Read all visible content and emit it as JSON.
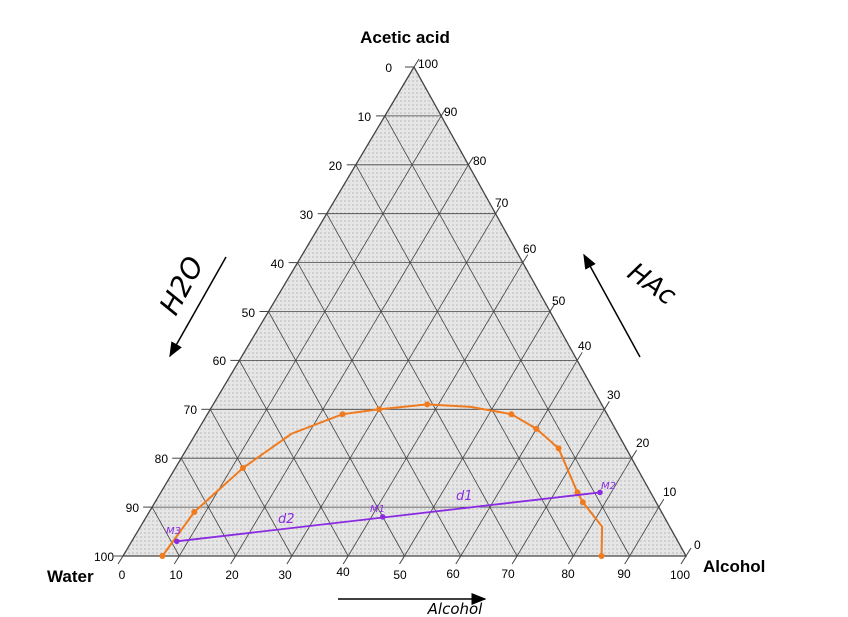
{
  "labels": {
    "top": "Acetic acid",
    "left": "Water",
    "right": "Alcohol"
  },
  "ticks": {
    "left_edge": [
      "0",
      "10",
      "20",
      "30",
      "40",
      "50",
      "60",
      "70",
      "80",
      "90",
      "100"
    ],
    "right_edge": [
      "100",
      "90",
      "80",
      "70",
      "60",
      "50",
      "40",
      "30",
      "20",
      "10",
      "0"
    ],
    "bottom_edge": [
      "0",
      "10",
      "20",
      "30",
      "40",
      "50",
      "60",
      "70",
      "80",
      "90",
      "100"
    ]
  },
  "annotations": {
    "h2o": "H2O",
    "hac": "HAc",
    "alcohol": "Alcohol",
    "m1": "M1",
    "m2": "M2",
    "m3": "M3",
    "d1": "d1",
    "d2": "d2"
  },
  "colors": {
    "grid": "#444444",
    "fill": "#e6e6e6",
    "curve": "#f07a1e",
    "tie_line": "#8a2be2"
  },
  "chart_data": {
    "type": "ternary",
    "vertices": {
      "top": "Acetic acid",
      "left": "Water",
      "right": "Alcohol"
    },
    "components": "acetic acid % / water % / alcohol %",
    "binodal_curve": [
      {
        "acetic_acid": 0,
        "alcohol": 7
      },
      {
        "acetic_acid": 9,
        "alcohol": 8
      },
      {
        "acetic_acid": 18,
        "alcohol": 12
      },
      {
        "acetic_acid": 25,
        "alcohol": 17
      },
      {
        "acetic_acid": 29,
        "alcohol": 24
      },
      {
        "acetic_acid": 30,
        "alcohol": 30
      },
      {
        "acetic_acid": 31,
        "alcohol": 38
      },
      {
        "acetic_acid": 30.5,
        "alcohol": 46
      },
      {
        "acetic_acid": 29,
        "alcohol": 54
      },
      {
        "acetic_acid": 26,
        "alcohol": 60
      },
      {
        "acetic_acid": 22,
        "alcohol": 66
      },
      {
        "acetic_acid": 13,
        "alcohol": 74
      },
      {
        "acetic_acid": 11,
        "alcohol": 76
      },
      {
        "acetic_acid": 6,
        "alcohol": 82
      },
      {
        "acetic_acid": 0,
        "alcohol": 85
      }
    ],
    "curve_markers": [
      {
        "acetic_acid": 0,
        "alcohol": 7
      },
      {
        "acetic_acid": 9,
        "alcohol": 8
      },
      {
        "acetic_acid": 18,
        "alcohol": 12
      },
      {
        "acetic_acid": 29,
        "alcohol": 24
      },
      {
        "acetic_acid": 30,
        "alcohol": 30
      },
      {
        "acetic_acid": 31,
        "alcohol": 38
      },
      {
        "acetic_acid": 29,
        "alcohol": 54
      },
      {
        "acetic_acid": 26,
        "alcohol": 60
      },
      {
        "acetic_acid": 22,
        "alcohol": 66
      },
      {
        "acetic_acid": 13,
        "alcohol": 74
      },
      {
        "acetic_acid": 11,
        "alcohol": 76
      },
      {
        "acetic_acid": 0,
        "alcohol": 85
      }
    ],
    "tie_line": {
      "start": {
        "name": "M3",
        "acetic_acid": 3,
        "alcohol": 8
      },
      "middle": {
        "name": "M1",
        "acetic_acid": 8,
        "alcohol": 42
      },
      "end": {
        "name": "M2",
        "acetic_acid": 13,
        "alcohol": 78
      }
    }
  }
}
